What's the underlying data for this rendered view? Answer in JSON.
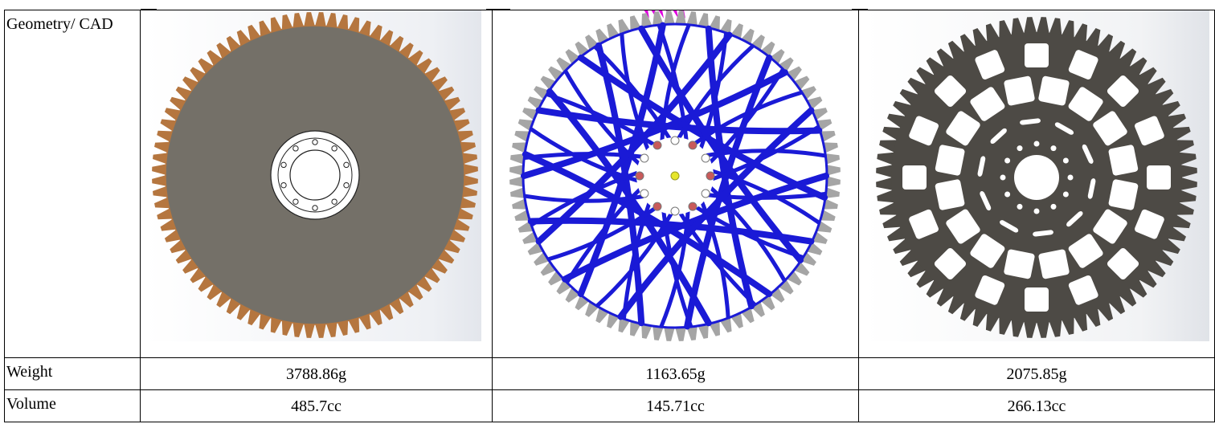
{
  "table": {
    "rows": [
      {
        "label": "Geometry/ CAD"
      },
      {
        "label": "Weight",
        "values": [
          "3788.86g",
          "1163.65g",
          "2075.85g"
        ]
      },
      {
        "label": "Volume",
        "values": [
          "485.7cc",
          "145.71cc",
          "266.13cc"
        ]
      }
    ]
  },
  "images": [
    {
      "icon": "solid-sprocket-cad",
      "colors": {
        "disc": "#747068",
        "teeth": "#b5763f"
      }
    },
    {
      "icon": "topology-optimized-sprocket",
      "colors": {
        "mesh": "#1a1ad6",
        "teeth": "#a5a5a5",
        "marker": "#e000e0"
      }
    },
    {
      "icon": "lightweight-sprocket-cad",
      "colors": {
        "body": "#4d4a45"
      }
    }
  ]
}
